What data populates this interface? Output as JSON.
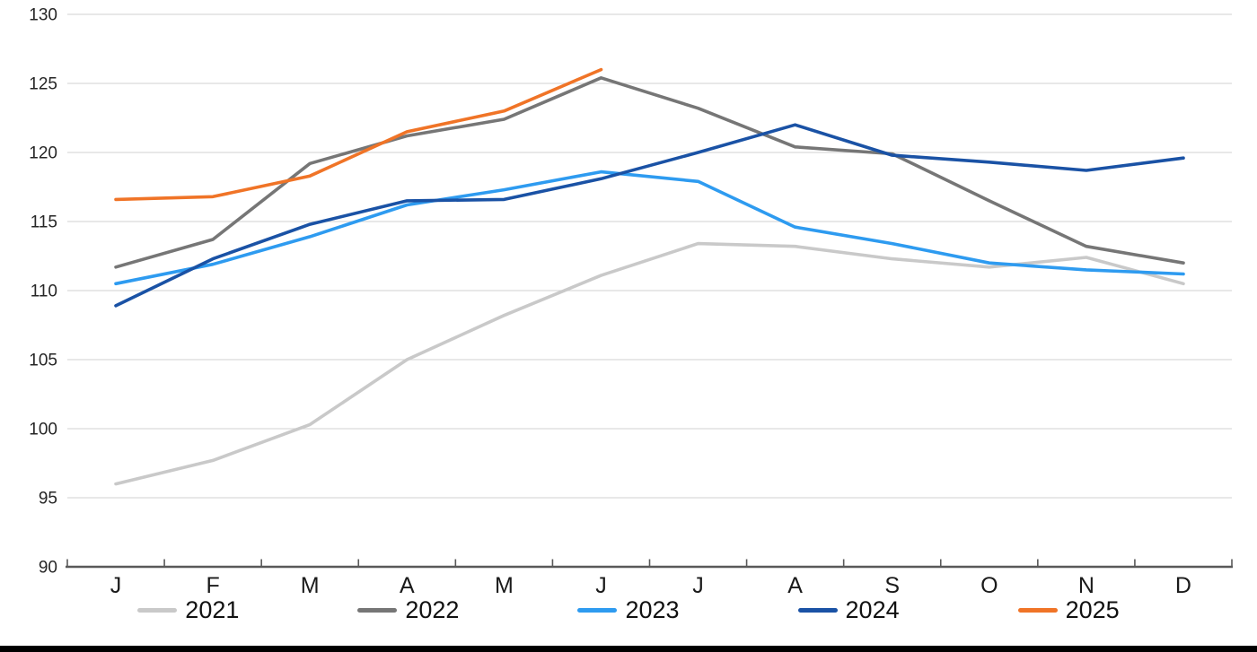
{
  "chart_data": {
    "type": "line",
    "title": "",
    "x_categories": [
      "J",
      "F",
      "M",
      "A",
      "M",
      "J",
      "J",
      "A",
      "S",
      "O",
      "N",
      "D"
    ],
    "y_axis": {
      "min": 90,
      "max": 130,
      "step": 5,
      "tick_labels": [
        "90",
        "95",
        "100",
        "105",
        "110",
        "115",
        "120",
        "125",
        "130"
      ]
    },
    "grid": true,
    "legend_position": "bottom",
    "series": [
      {
        "name": "2021",
        "color": "#C9C9C9",
        "values": [
          96.0,
          97.7,
          100.3,
          105.0,
          108.2,
          111.1,
          113.4,
          113.2,
          112.3,
          111.7,
          112.4,
          110.5
        ]
      },
      {
        "name": "2022",
        "color": "#767676",
        "values": [
          111.7,
          113.7,
          119.2,
          121.2,
          122.4,
          125.4,
          123.2,
          120.4,
          119.9,
          116.5,
          113.2,
          112.0
        ]
      },
      {
        "name": "2023",
        "color": "#2E9BF0",
        "values": [
          110.5,
          111.9,
          113.9,
          116.2,
          117.3,
          118.6,
          117.9,
          114.6,
          113.4,
          112.0,
          111.5,
          111.2
        ]
      },
      {
        "name": "2024",
        "color": "#1A52A5",
        "values": [
          108.9,
          112.3,
          114.8,
          116.5,
          116.6,
          118.1,
          120.0,
          122.0,
          119.8,
          119.3,
          118.7,
          119.6
        ]
      },
      {
        "name": "2025",
        "color": "#F07427",
        "values": [
          116.6,
          116.8,
          118.3,
          121.5,
          123.0,
          126.0
        ]
      }
    ],
    "style_colors": {
      "gridline": "#D9D9D9",
      "axis_line": "#595959",
      "tick": "#595959",
      "y_label_color": "#262626",
      "x_label_color": "#1A1A1A"
    }
  }
}
